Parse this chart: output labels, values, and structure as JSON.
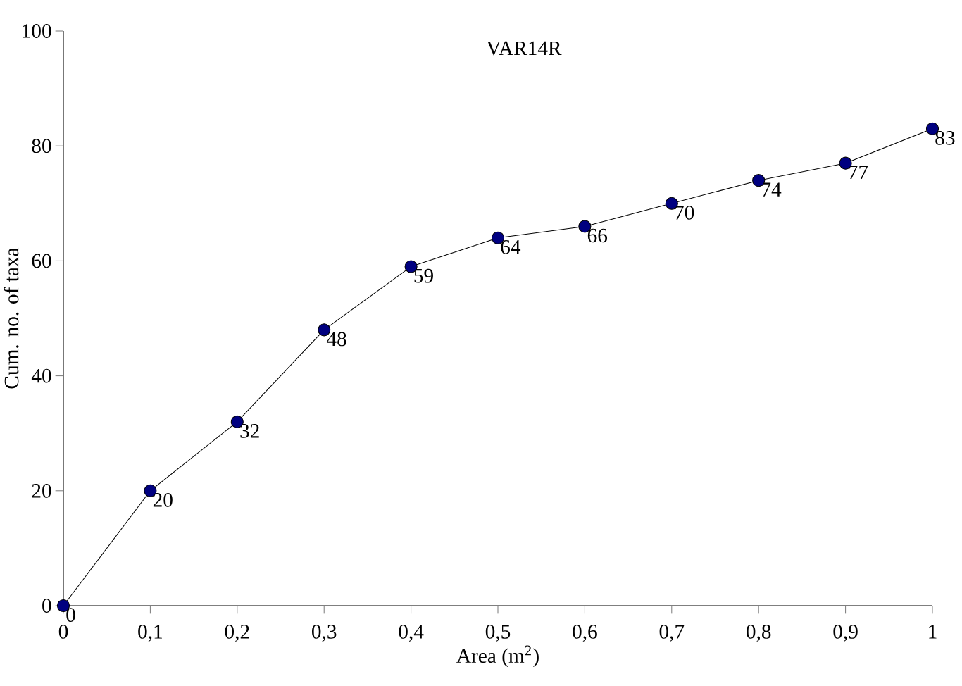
{
  "chart_data": {
    "type": "line",
    "title": "VAR14R",
    "xlabel": "Area (m$^{2}$)",
    "ylabel": "Cum. no. of taxa",
    "x": [
      0,
      0.1,
      0.2,
      0.3,
      0.4,
      0.5,
      0.6,
      0.7,
      0.8,
      0.9,
      1
    ],
    "series": [
      {
        "color": "#000080",
        "values": [
          0,
          20,
          32,
          48,
          59,
          64,
          66,
          70,
          74,
          77,
          83
        ]
      }
    ],
    "xlim": [
      0,
      1
    ],
    "ylim": [
      0,
      100
    ],
    "xticks": [
      0,
      {
        "value": 0.1,
        "label": "0,1"
      },
      {
        "value": 0.2,
        "label": "0,2"
      },
      {
        "value": 0.3,
        "label": "0,3"
      },
      {
        "value": 0.4,
        "label": "0,4"
      },
      {
        "value": 0.5,
        "label": "0,5"
      },
      {
        "value": 0.6,
        "label": "0,6"
      },
      {
        "value": 0.7,
        "label": "0,7"
      },
      {
        "value": 0.8,
        "label": "0,8"
      },
      {
        "value": 0.9,
        "label": "0,9"
      },
      1
    ],
    "yticks": [
      0,
      20,
      40,
      60,
      80,
      100
    ],
    "marker": "circle",
    "line_style": "solid",
    "grid": false,
    "data_labels": true
  }
}
